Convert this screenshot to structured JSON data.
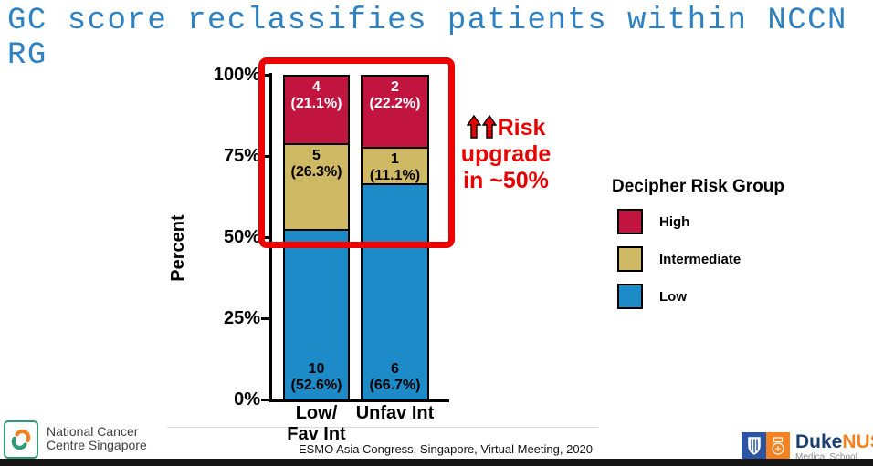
{
  "title": {
    "line1": "GC score reclassifies patients within NCCN",
    "line2": "RG",
    "color": "#2e81c3"
  },
  "chart_data": {
    "type": "bar",
    "stacked": true,
    "ylabel": "Percent",
    "ylim": [
      0,
      100
    ],
    "grid": false,
    "yticks": [
      {
        "value": 100,
        "label": "100%"
      },
      {
        "value": 75,
        "label": "75%"
      },
      {
        "value": 50,
        "label": "50%"
      },
      {
        "value": 25,
        "label": "25%"
      },
      {
        "value": 0,
        "label": "0%"
      }
    ],
    "categories": [
      {
        "label_lines": [
          "Low/",
          "Fav Int"
        ]
      },
      {
        "label_lines": [
          "Unfav Int"
        ]
      }
    ],
    "series": [
      {
        "name": "High",
        "color": "#c11540",
        "text_color": "#ffffff",
        "counts": [
          4,
          2
        ],
        "percents": [
          21.1,
          22.2
        ],
        "labels": [
          [
            "4",
            "(21.1%)"
          ],
          [
            "2",
            "(22.2%)"
          ]
        ]
      },
      {
        "name": "Intermediate",
        "color": "#cfb964",
        "text_color": "#000000",
        "counts": [
          5,
          1
        ],
        "percents": [
          26.3,
          11.1
        ],
        "labels": [
          [
            "5",
            "(26.3%)"
          ],
          [
            "1",
            "(11.1%)"
          ]
        ]
      },
      {
        "name": "Low",
        "color": "#1e8bc9",
        "text_color": "#000000",
        "counts": [
          10,
          6
        ],
        "percents": [
          52.6,
          66.7
        ],
        "labels": [
          [
            "10",
            "(52.6%)"
          ],
          [
            "6",
            "(66.7%)"
          ]
        ]
      }
    ],
    "legend": {
      "title": "Decipher Risk Group",
      "entries": [
        "High",
        "Intermediate",
        "Low"
      ],
      "position": "right"
    }
  },
  "highlight_box": {
    "color": "#ee0000"
  },
  "annotation": {
    "lines": [
      "Risk",
      "upgrade",
      "in ~50%"
    ],
    "color": "#e60000",
    "arrow_icon": "up-arrow",
    "arrow_count": 2
  },
  "footer": {
    "left_logo": {
      "org_line1": "National Cancer",
      "org_line2": "Centre Singapore",
      "border_color": "#2e9b77",
      "swirl_green": "#2e9b77",
      "swirl_orange": "#ef8122"
    },
    "credit": "ESMO Asia Congress, Singapore, Virtual Meeting, 2020",
    "right_logo": {
      "brand_duke": "Duke",
      "brand_nus": "NUS",
      "subtitle": "Medical School",
      "duke_blue": "#2b54a3",
      "nus_orange": "#f58220"
    }
  }
}
